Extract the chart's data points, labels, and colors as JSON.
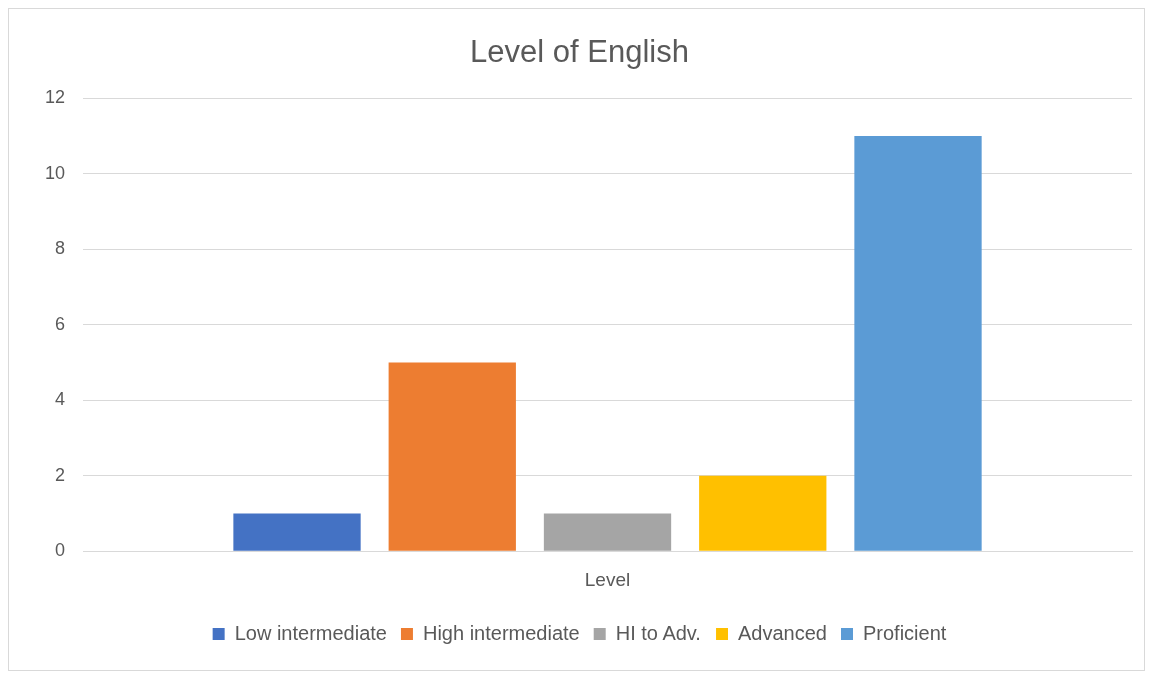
{
  "chart_data": {
    "type": "bar",
    "title": "Level of English",
    "categories": [
      "Level"
    ],
    "series": [
      {
        "name": "Low intermediate",
        "color": "#4472c4",
        "values": [
          1
        ]
      },
      {
        "name": "High intermediate",
        "color": "#ed7d31",
        "values": [
          5
        ]
      },
      {
        "name": "HI to Adv.",
        "color": "#a5a5a5",
        "values": [
          1
        ]
      },
      {
        "name": "Advanced",
        "color": "#ffc000",
        "values": [
          2
        ]
      },
      {
        "name": "Proficient",
        "color": "#5b9bd5",
        "values": [
          11
        ]
      }
    ],
    "ylim": [
      0,
      12
    ],
    "yticks": [
      0,
      2,
      4,
      6,
      8,
      10,
      12
    ],
    "grid": "y",
    "legend": "bottom"
  }
}
